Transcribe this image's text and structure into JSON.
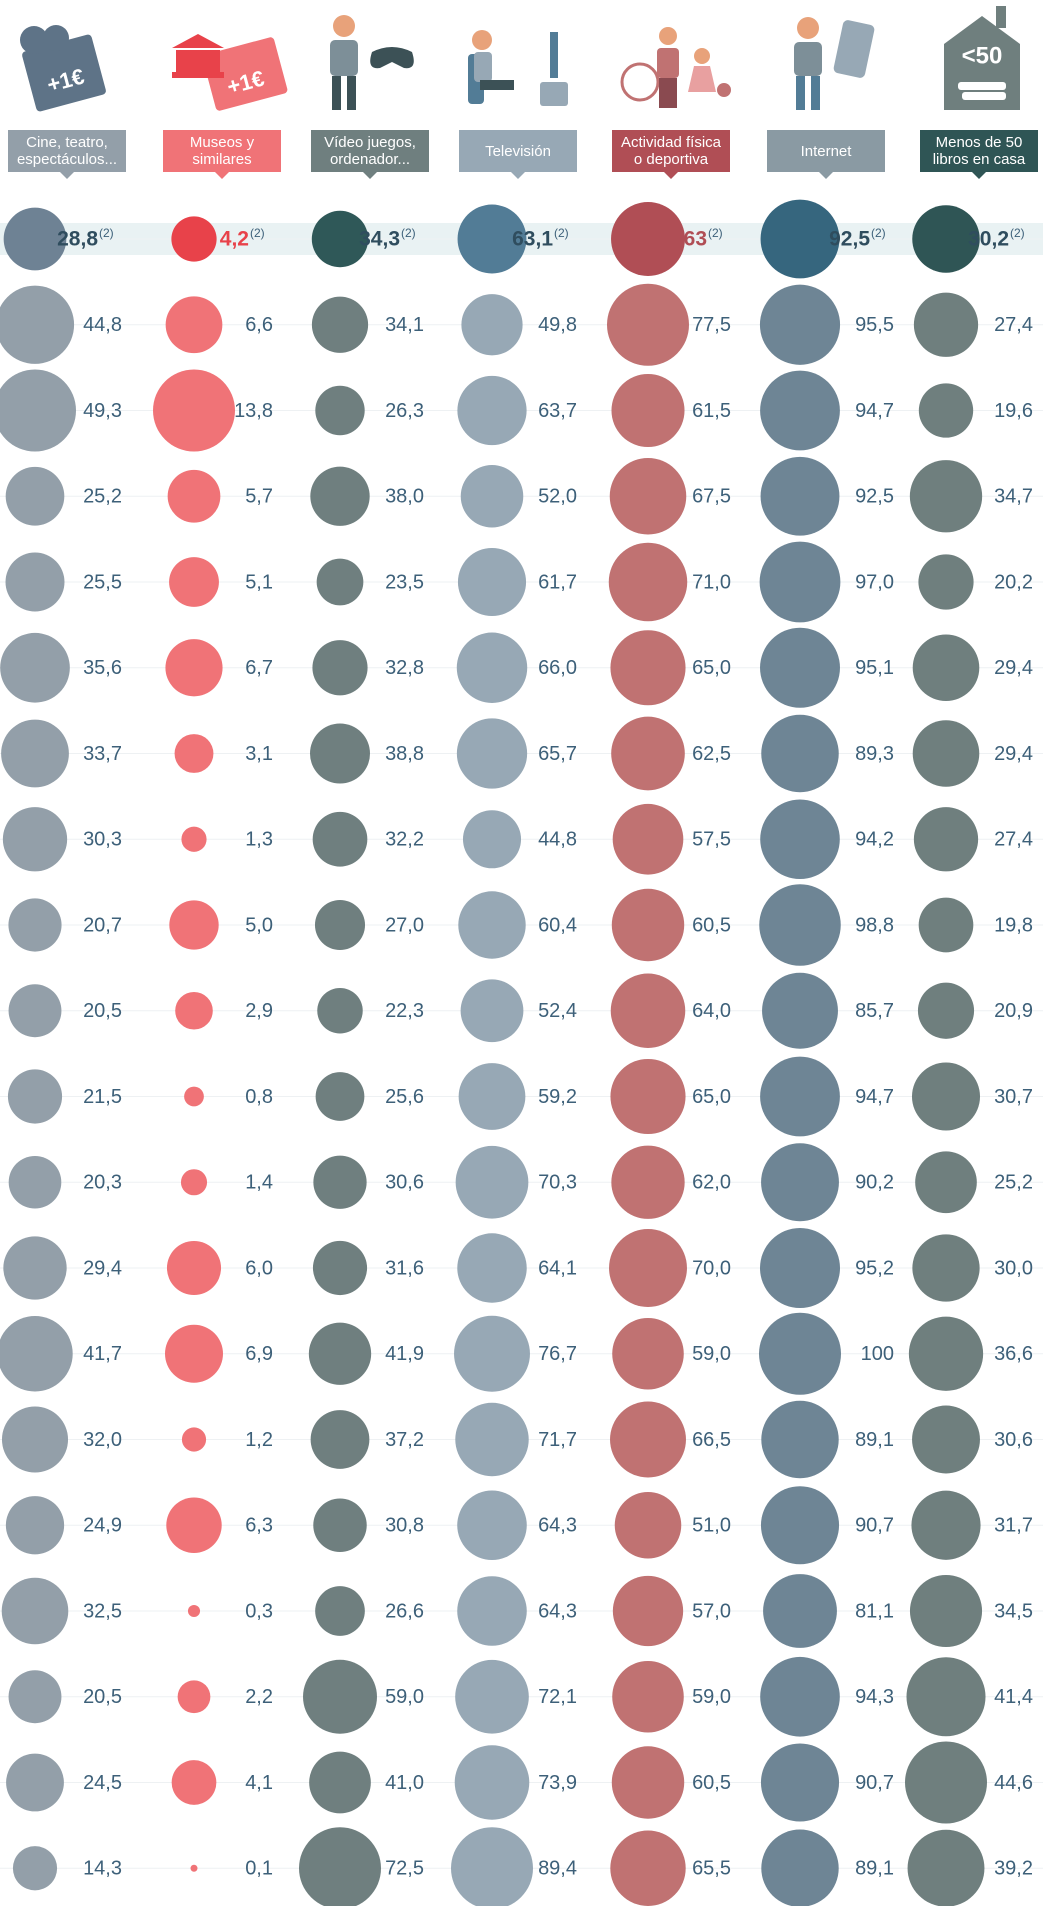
{
  "chart_data": {
    "type": "bubble_matrix",
    "grid": true,
    "highlight_row": 0,
    "note": "(2)",
    "icon_texts": [
      "+1€",
      "+1€",
      "<50"
    ],
    "series": [
      {
        "name": "Cine, teatro, espectáculos...",
        "color": "#939fa9",
        "highlight_color": "#6e8294",
        "header_color": "#939fa9",
        "values": [
          28.8,
          44.8,
          49.3,
          25.2,
          25.5,
          35.6,
          33.7,
          30.3,
          20.7,
          20.5,
          21.5,
          20.3,
          29.4,
          41.7,
          32.0,
          24.9,
          32.5,
          20.5,
          24.5,
          14.3
        ],
        "value_labels": [
          "28,8",
          "44,8",
          "49,3",
          "25,2",
          "25,5",
          "35,6",
          "33,7",
          "30,3",
          "20,7",
          "20,5",
          "21,5",
          "20,3",
          "29,4",
          "41,7",
          "32,0",
          "24,9",
          "32,5",
          "20,5",
          "24,5",
          "14,3"
        ]
      },
      {
        "name": "Museos y similares",
        "color": "#f07377",
        "highlight_color": "#e8424a",
        "header_color": "#f07377",
        "values": [
          4.2,
          6.6,
          13.8,
          5.7,
          5.1,
          6.7,
          3.1,
          1.3,
          5.0,
          2.9,
          0.8,
          1.4,
          6.0,
          6.9,
          1.2,
          6.3,
          0.3,
          2.2,
          4.1,
          0.1
        ],
        "value_labels": [
          "4,2",
          "6,6",
          "13,8",
          "5,7",
          "5,1",
          "6,7",
          "3,1",
          "1,3",
          "5,0",
          "2,9",
          "0,8",
          "1,4",
          "6,0",
          "6,9",
          "1,2",
          "6,3",
          "0,3",
          "2,2",
          "4,1",
          "0,1"
        ]
      },
      {
        "name": "Vídeo juegos, ordenador...",
        "color": "#6f7f7f",
        "highlight_color": "#2f5858",
        "header_color": "#6f7f7f",
        "values": [
          34.3,
          34.1,
          26.3,
          38.0,
          23.5,
          32.8,
          38.8,
          32.2,
          27.0,
          22.3,
          25.6,
          30.6,
          31.6,
          41.9,
          37.2,
          30.8,
          26.6,
          59.0,
          41.0,
          72.5
        ],
        "value_labels": [
          "34,3",
          "34,1",
          "26,3",
          "38,0",
          "23,5",
          "32,8",
          "38,8",
          "32,2",
          "27,0",
          "22,3",
          "25,6",
          "30,6",
          "31,6",
          "41,9",
          "37,2",
          "30,8",
          "26,6",
          "59,0",
          "41,0",
          "72,5"
        ]
      },
      {
        "name": "Televisión",
        "color": "#97a8b5",
        "highlight_color": "#527c96",
        "header_color": "#97a8b5",
        "values": [
          63.1,
          49.8,
          63.7,
          52.0,
          61.7,
          66.0,
          65.7,
          44.8,
          60.4,
          52.4,
          59.2,
          70.3,
          64.1,
          76.7,
          71.7,
          64.3,
          64.3,
          72.1,
          73.9,
          89.4
        ],
        "value_labels": [
          "63,1",
          "49,8",
          "63,7",
          "52,0",
          "61,7",
          "66,0",
          "65,7",
          "44,8",
          "60,4",
          "52,4",
          "59,2",
          "70,3",
          "64,1",
          "76,7",
          "71,7",
          "64,3",
          "64,3",
          "72,1",
          "73,9",
          "89,4"
        ]
      },
      {
        "name": "Actividad física o deportiva",
        "color": "#c07272",
        "highlight_color": "#b04e55",
        "header_color": "#b04e55",
        "values": [
          63,
          77.5,
          61.5,
          67.5,
          71.0,
          65.0,
          62.5,
          57.5,
          60.5,
          64.0,
          65.0,
          62.0,
          70.0,
          59.0,
          66.5,
          51.0,
          57.0,
          59.0,
          60.5,
          65.5
        ],
        "value_labels": [
          "63",
          "77,5",
          "61,5",
          "67,5",
          "71,0",
          "65,0",
          "62,5",
          "57,5",
          "60,5",
          "64,0",
          "65,0",
          "62,0",
          "70,0",
          "59,0",
          "66,5",
          "51,0",
          "57,0",
          "59,0",
          "60,5",
          "65,5"
        ]
      },
      {
        "name": "Internet",
        "color": "#6e8595",
        "highlight_color": "#36667e",
        "header_color": "#8a9aa3",
        "values": [
          92.5,
          95.5,
          94.7,
          92.5,
          97.0,
          95.1,
          89.3,
          94.2,
          98.8,
          85.7,
          94.7,
          90.2,
          95.2,
          100,
          89.1,
          90.7,
          81.1,
          94.3,
          90.7,
          89.1
        ],
        "value_labels": [
          "92,5",
          "95,5",
          "94,7",
          "92,5",
          "97,0",
          "95,1",
          "89,3",
          "94,2",
          "98,8",
          "85,7",
          "94,7",
          "90,2",
          "95,2",
          "100",
          "89,1",
          "90,7",
          "81,1",
          "94,3",
          "90,7",
          "89,1"
        ]
      },
      {
        "name": "Menos de 50 libros en casa",
        "color": "#6f7f7e",
        "highlight_color": "#2f5555",
        "header_color": "#2f5555",
        "values": [
          30.2,
          27.4,
          19.6,
          34.7,
          20.2,
          29.4,
          29.4,
          27.4,
          19.8,
          20.9,
          30.7,
          25.2,
          30.0,
          36.6,
          30.6,
          31.7,
          34.5,
          41.4,
          44.6,
          39.2
        ],
        "value_labels": [
          "30,2",
          "27,4",
          "19,6",
          "34,7",
          "20,2",
          "29,4",
          "29,4",
          "27,4",
          "19,8",
          "20,9",
          "30,7",
          "25,2",
          "30,0",
          "36,6",
          "30,6",
          "31,7",
          "34,5",
          "41,4",
          "44,6",
          "39,2"
        ]
      }
    ]
  }
}
